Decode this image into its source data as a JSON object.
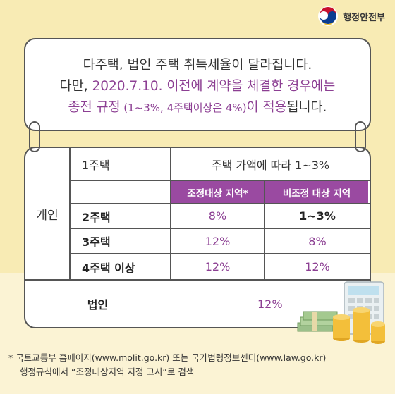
{
  "logo": {
    "text": "행정안전부"
  },
  "notice": {
    "line1": "다주택, 법인 주택 취득세율이 달라집니다.",
    "line2_prefix": "다만, ",
    "line2_highlight": "2020.7.10. 이전에 계약을 체결한 경우에는",
    "line3_highlight": "종전 규정",
    "line3_paren": " (1~3%, 4주택이상은 4%)",
    "line3_purple_tail": "이 적용",
    "line3_suffix": "됩니다."
  },
  "table": {
    "individual_label": "개인",
    "one_house_label": "1주택",
    "one_house_value": "주택 가액에 따라 1~3%",
    "header_regulated": "조정대상 지역*",
    "header_nonregulated": "비조정 대상 지역",
    "rows": [
      {
        "label": "2주택",
        "regulated": "8%",
        "nonregulated": "1~3%"
      },
      {
        "label": "3주택",
        "regulated": "12%",
        "nonregulated": "8%"
      },
      {
        "label": "4주택 이상",
        "regulated": "12%",
        "nonregulated": "12%"
      }
    ],
    "corporate_label": "법인",
    "corporate_value": "12%"
  },
  "footnote": {
    "line1": "* 국토교통부 홈페이지(www.molit.go.kr) 또는 국가법령정보센터(www.law.go.kr)",
    "line2": "행정규칙에서 “조정대상지역 지정 고시”로 검색"
  },
  "colors": {
    "accent": "#9a4aa1",
    "text_purple": "#8c3f93",
    "background": "#f8ebb4"
  },
  "icons": [
    "government-logo-icon",
    "money-stack-icon",
    "coin-stack-icon",
    "calculator-icon"
  ]
}
